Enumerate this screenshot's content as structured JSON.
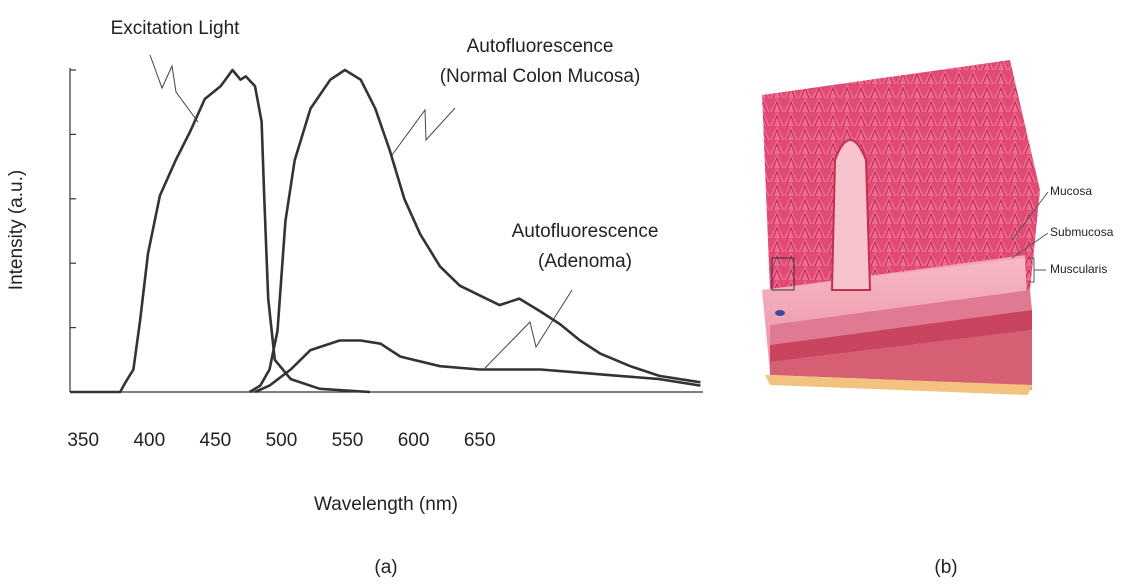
{
  "chart_data": {
    "type": "line",
    "xlabel": "Wavelength (nm)",
    "ylabel": "Intensity (a.u.)",
    "xlim": [
      340,
      819
    ],
    "xticks": [
      350,
      400,
      450,
      500,
      550,
      600,
      650
    ],
    "ylim": [
      0,
      1
    ],
    "yticks": [
      0,
      0.2,
      0.4,
      0.6,
      0.8,
      1
    ],
    "series": [
      {
        "name": "Excitation Light",
        "color": "#333333",
        "x": [
          340,
          378,
          382,
          388,
          393,
          399,
          408,
          420,
          431,
          442,
          454,
          463,
          469,
          473,
          480,
          485,
          487,
          490,
          495,
          507,
          529,
          567
        ],
        "values": [
          0,
          0,
          0.03,
          0.07,
          0.22,
          0.43,
          0.61,
          0.72,
          0.81,
          0.91,
          0.95,
          1,
          0.97,
          0.98,
          0.95,
          0.84,
          0.6,
          0.29,
          0.1,
          0.04,
          0.01,
          0
        ]
      },
      {
        "name": "Autofluorescence\n(Normal Colon Mucosa)",
        "color": "#333333",
        "x": [
          476,
          484,
          491,
          497,
          503,
          510,
          522,
          537,
          548,
          560,
          571,
          582,
          593,
          605,
          620,
          635,
          650,
          665,
          680,
          696,
          711,
          726,
          741,
          764,
          786,
          817
        ],
        "values": [
          0,
          0.02,
          0.07,
          0.19,
          0.53,
          0.72,
          0.88,
          0.97,
          1,
          0.97,
          0.88,
          0.75,
          0.6,
          0.49,
          0.39,
          0.33,
          0.3,
          0.27,
          0.29,
          0.25,
          0.21,
          0.16,
          0.12,
          0.08,
          0.05,
          0.03
        ]
      },
      {
        "name": "Autofluorescence\n(Adenoma)",
        "color": "#333333",
        "x": [
          480,
          491,
          507,
          522,
          544,
          560,
          575,
          590,
          620,
          650,
          665,
          696,
          726,
          756,
          786,
          817
        ],
        "values": [
          0,
          0.02,
          0.07,
          0.13,
          0.16,
          0.16,
          0.15,
          0.11,
          0.08,
          0.07,
          0.07,
          0.07,
          0.06,
          0.05,
          0.04,
          0.02
        ]
      }
    ]
  },
  "panels": {
    "a": "(a)",
    "b": "(b)"
  },
  "illustration": {
    "labels": [
      "Mucosa",
      "Submucosa",
      "Muscularis"
    ]
  }
}
